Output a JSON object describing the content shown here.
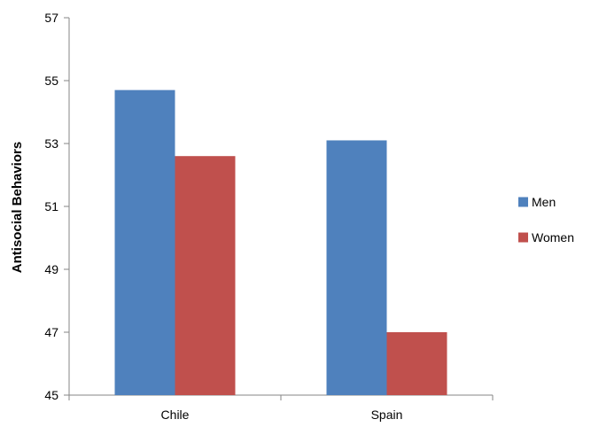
{
  "chart_data": {
    "type": "bar",
    "title": "",
    "xlabel": "",
    "ylabel": "Antisocial Behaviors",
    "categories": [
      "Chile",
      "Spain"
    ],
    "series": [
      {
        "name": "Men",
        "values": [
          54.7,
          53.1
        ],
        "color": "#4F81BD"
      },
      {
        "name": "Women",
        "values": [
          52.6,
          47.0
        ],
        "color": "#C0504D"
      }
    ],
    "ylim": [
      45,
      57
    ],
    "yticks": [
      45,
      47,
      49,
      51,
      53,
      55,
      57
    ],
    "grid": false,
    "legend_position": "right"
  }
}
